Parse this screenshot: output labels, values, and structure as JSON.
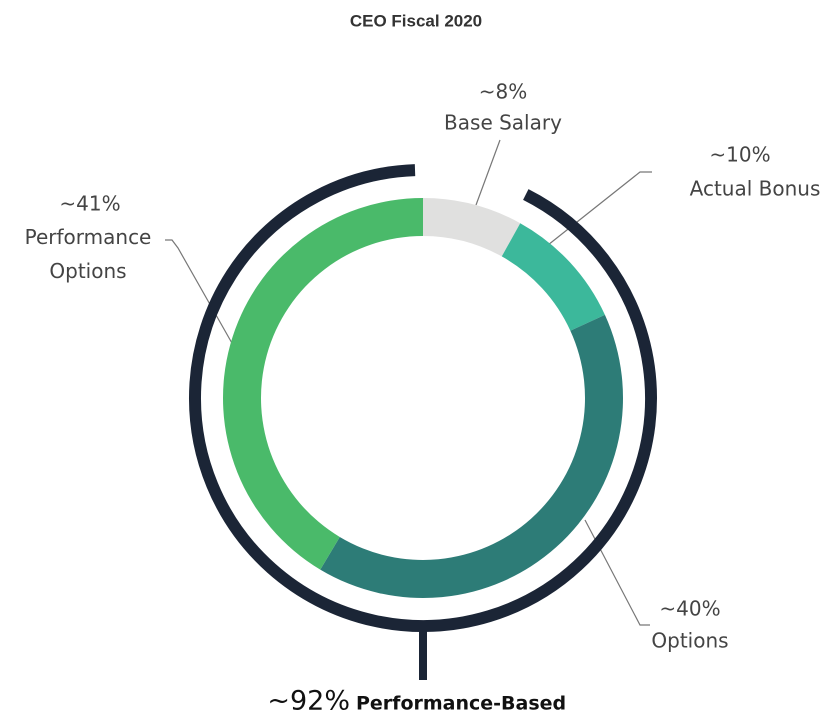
{
  "chart_data": {
    "type": "donut",
    "title": "CEO Fiscal 2020",
    "categories": [
      "Base Salary",
      "Actual Bonus",
      "Options",
      "Performance Options"
    ],
    "values": [
      8,
      10,
      40,
      41
    ],
    "value_labels": [
      "~8%",
      "~10%",
      "~40%",
      "~41%"
    ],
    "colors": [
      "#e0e0df",
      "#3cb89b",
      "#2d7c77",
      "#4aba6a"
    ],
    "annotation": {
      "value": 92,
      "label": "~92%",
      "text": "Performance-Based",
      "color": "#1b2536"
    }
  }
}
